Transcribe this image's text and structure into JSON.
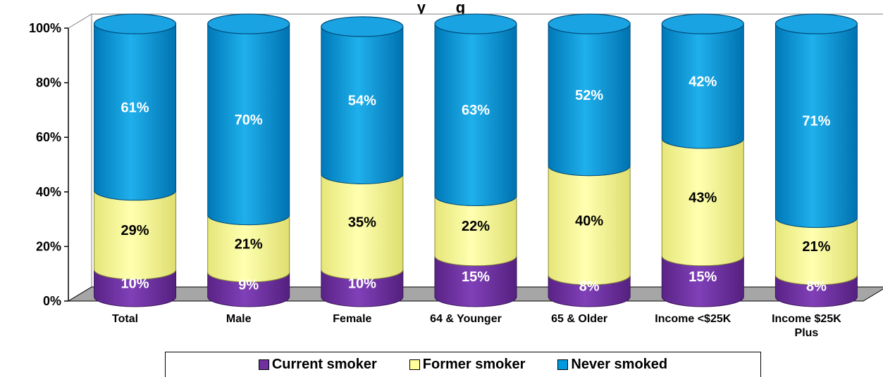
{
  "chart_data": {
    "type": "bar",
    "stacked": true,
    "title": "y       g",
    "categories": [
      [
        "Total"
      ],
      [
        "Male"
      ],
      [
        "Female"
      ],
      [
        "64 & Younger"
      ],
      [
        "65 & Older"
      ],
      [
        "Income <$25K"
      ],
      [
        "Income $25K",
        "Plus"
      ]
    ],
    "series": [
      {
        "name": "Current smoker",
        "values": [
          10,
          9,
          10,
          15,
          8,
          15,
          8
        ],
        "labels": [
          "10%",
          "9%",
          "10%",
          "15%",
          "8%",
          "15%",
          "8%"
        ],
        "color": "#7030A0",
        "label_color": "#ffffff"
      },
      {
        "name": "Former smoker",
        "values": [
          29,
          21,
          35,
          22,
          40,
          43,
          21
        ],
        "labels": [
          "29%",
          "21%",
          "35%",
          "22%",
          "40%",
          "43%",
          "21%"
        ],
        "color": "#FFFF99",
        "label_color": "#000000"
      },
      {
        "name": "Never smoked",
        "values": [
          61,
          70,
          54,
          63,
          52,
          42,
          71
        ],
        "labels": [
          "61%",
          "70%",
          "54%",
          "63%",
          "52%",
          "42%",
          "71%"
        ],
        "color": "#0099DD",
        "label_color": "#ffffff"
      }
    ],
    "yticks": [
      "0%",
      "20%",
      "40%",
      "60%",
      "80%",
      "100%"
    ],
    "ylim": [
      0,
      100
    ],
    "legend": "bottom",
    "grid": false
  }
}
